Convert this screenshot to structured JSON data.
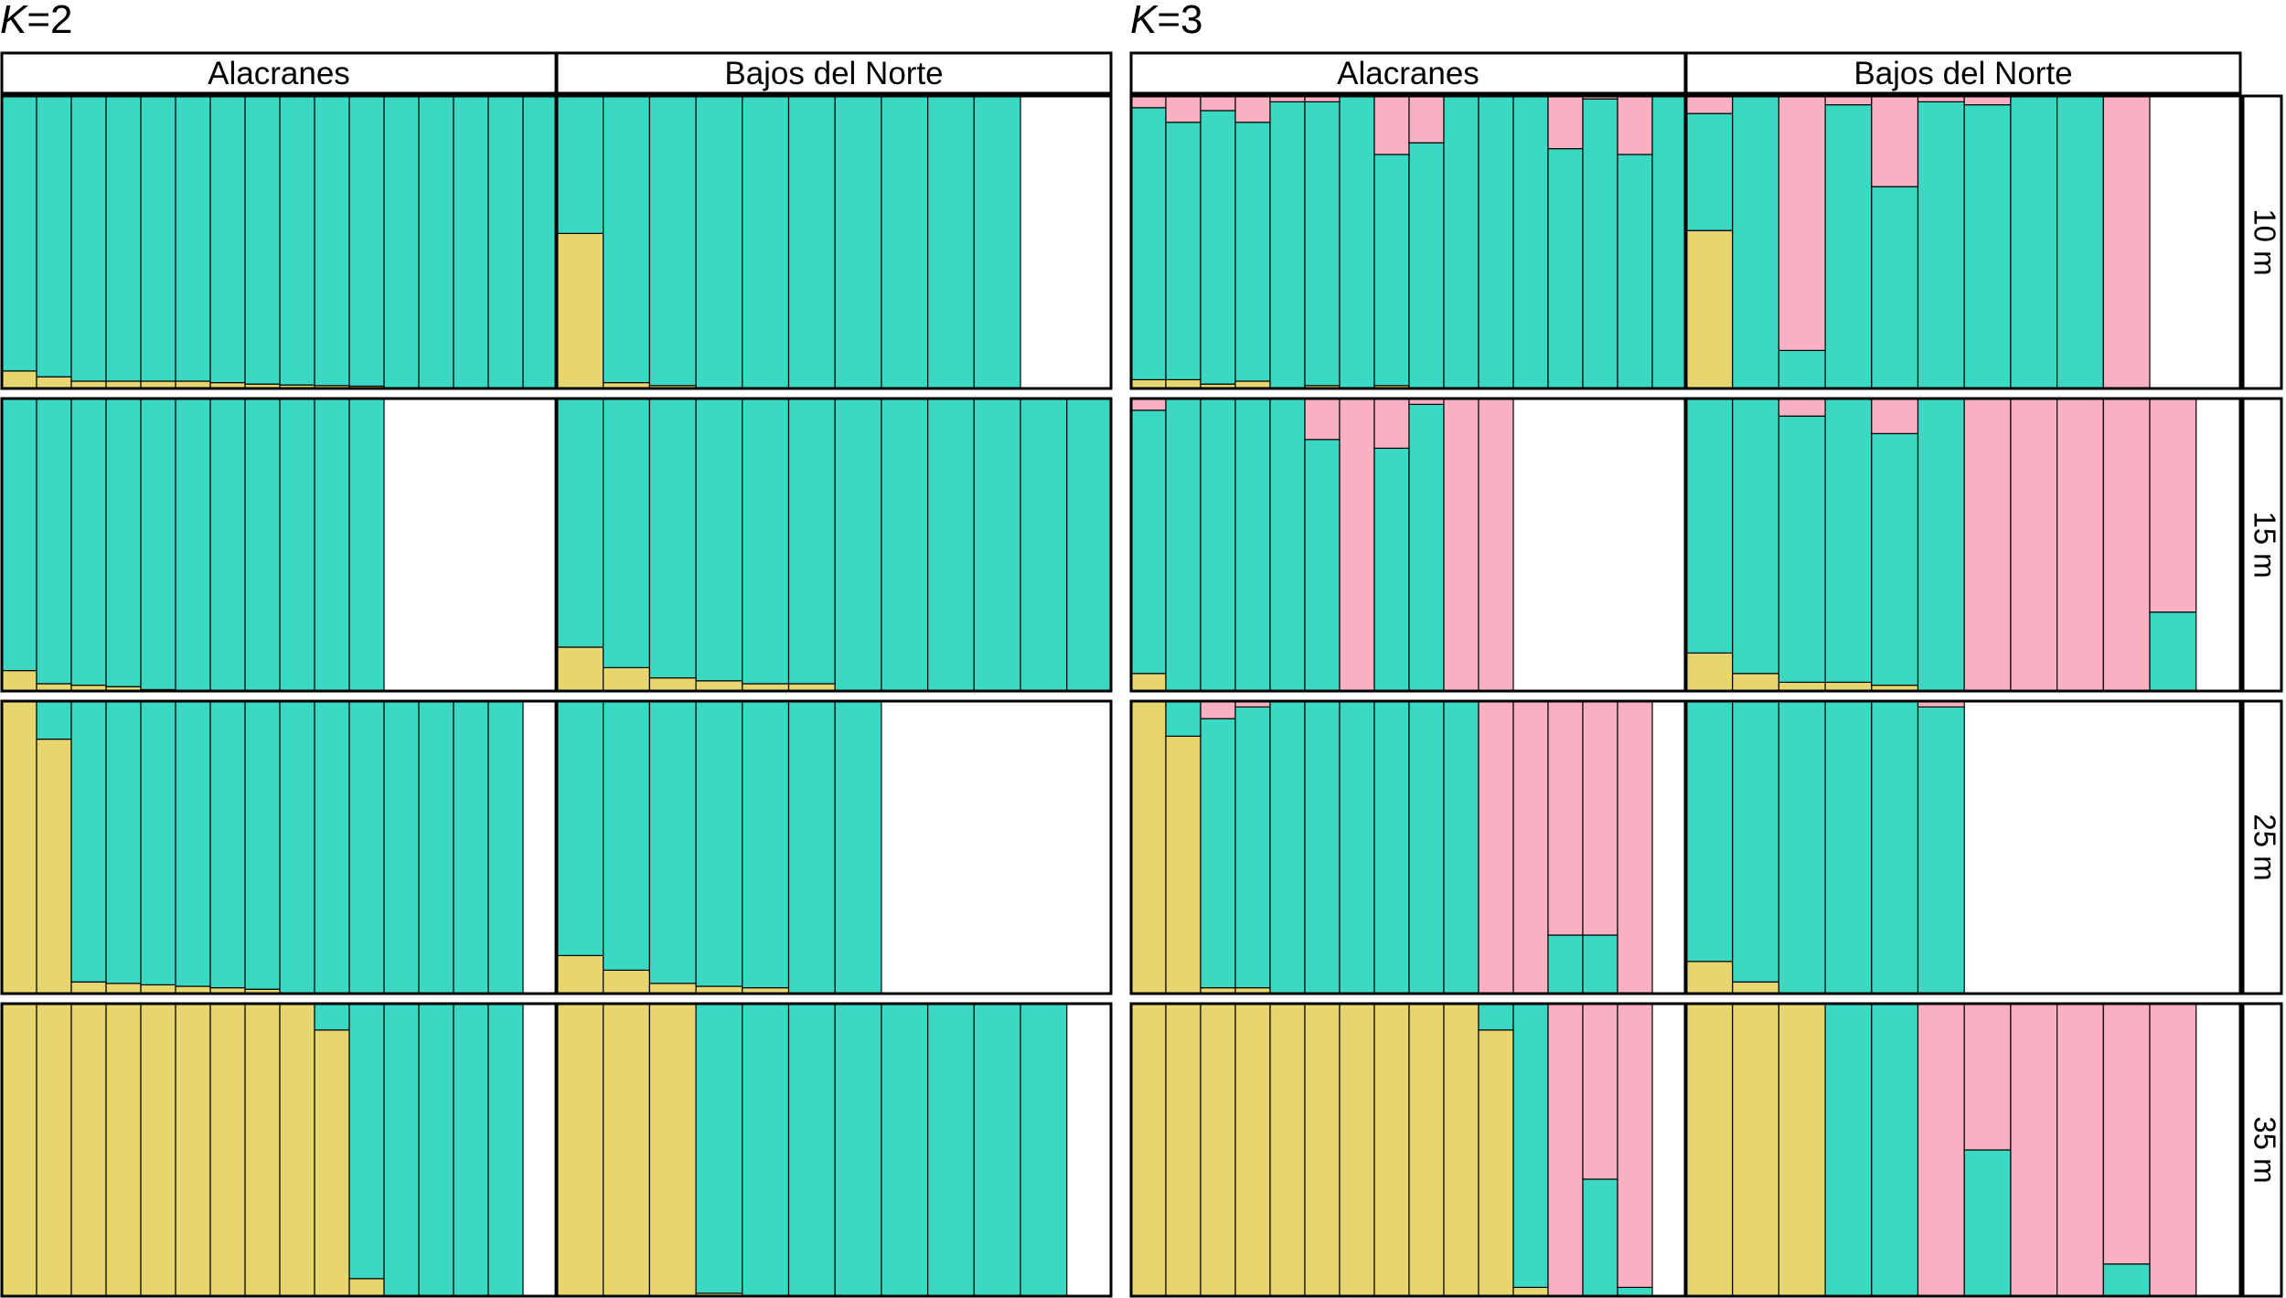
{
  "figure": {
    "panel_k2_label_italic": "K",
    "panel_k2_label_rest": "=2",
    "panel_k3_label_italic": "K",
    "panel_k3_label_rest": "=3"
  },
  "colors": {
    "cluster1": "#e7d570",
    "cluster2": "#3bd9c4",
    "cluster3": "#f8b0c2",
    "frame": "#000000"
  },
  "chart_data": [
    {
      "type": "bar",
      "subtype": "stacked-admixture",
      "title": "K=2",
      "columns": [
        "Alacranes",
        "Bajos del Norte"
      ],
      "rows": [
        "10 m",
        "15 m",
        "25 m",
        "35 m"
      ],
      "clusters": [
        "cluster1",
        "cluster2"
      ],
      "ylim": [
        0,
        1
      ],
      "cells": [
        [
          [
            [
              0.06,
              0.94
            ],
            [
              0.04,
              0.96
            ],
            [
              0.025,
              0.975
            ],
            [
              0.025,
              0.975
            ],
            [
              0.025,
              0.975
            ],
            [
              0.025,
              0.975
            ],
            [
              0.02,
              0.98
            ],
            [
              0.015,
              0.985
            ],
            [
              0.012,
              0.988
            ],
            [
              0.01,
              0.99
            ],
            [
              0.008,
              0.992
            ],
            [
              0,
              1
            ],
            [
              0,
              1
            ],
            [
              0,
              1
            ],
            [
              0,
              1
            ],
            [
              0,
              1
            ]
          ],
          [
            [
              0.53,
              0.47
            ],
            [
              0.02,
              0.98
            ],
            [
              0.01,
              0.99
            ],
            [
              0,
              1
            ],
            [
              0,
              1
            ],
            [
              0,
              1
            ],
            [
              0,
              1
            ],
            [
              0,
              1
            ],
            [
              0,
              1
            ],
            [
              0,
              1
            ]
          ]
        ],
        [
          [
            [
              0.07,
              0.93
            ],
            [
              0.025,
              0.975
            ],
            [
              0.02,
              0.98
            ],
            [
              0.015,
              0.985
            ],
            [
              0.005,
              0.995
            ],
            [
              0,
              1
            ],
            [
              0,
              1
            ],
            [
              0,
              1
            ],
            [
              0,
              1
            ],
            [
              0,
              1
            ],
            [
              0,
              1
            ]
          ],
          [
            [
              0.15,
              0.85
            ],
            [
              0.08,
              0.92
            ],
            [
              0.045,
              0.955
            ],
            [
              0.035,
              0.965
            ],
            [
              0.025,
              0.975
            ],
            [
              0.025,
              0.975
            ],
            [
              0,
              1
            ],
            [
              0,
              1
            ],
            [
              0,
              1
            ],
            [
              0,
              1
            ],
            [
              0,
              1
            ],
            [
              0,
              1
            ]
          ]
        ],
        [
          [
            [
              1,
              0
            ],
            [
              0.87,
              0.13
            ],
            [
              0.04,
              0.96
            ],
            [
              0.035,
              0.965
            ],
            [
              0.03,
              0.97
            ],
            [
              0.025,
              0.975
            ],
            [
              0.02,
              0.98
            ],
            [
              0.015,
              0.985
            ],
            [
              0,
              1
            ],
            [
              0,
              1
            ],
            [
              0,
              1
            ],
            [
              0,
              1
            ],
            [
              0,
              1
            ],
            [
              0,
              1
            ],
            [
              0,
              1
            ]
          ],
          [
            [
              0.13,
              0.87
            ],
            [
              0.08,
              0.92
            ],
            [
              0.035,
              0.965
            ],
            [
              0.025,
              0.975
            ],
            [
              0.02,
              0.98
            ],
            [
              0,
              1
            ],
            [
              0,
              1
            ]
          ]
        ],
        [
          [
            [
              1,
              0
            ],
            [
              1,
              0
            ],
            [
              1,
              0
            ],
            [
              1,
              0
            ],
            [
              1,
              0
            ],
            [
              1,
              0
            ],
            [
              1,
              0
            ],
            [
              1,
              0
            ],
            [
              1,
              0
            ],
            [
              0.91,
              0.09
            ],
            [
              0.06,
              0.94
            ],
            [
              0,
              1
            ],
            [
              0,
              1
            ],
            [
              0,
              1
            ],
            [
              0,
              1
            ]
          ],
          [
            [
              1,
              0
            ],
            [
              1,
              0
            ],
            [
              1,
              0
            ],
            [
              0.01,
              0.99
            ],
            [
              0,
              1
            ],
            [
              0,
              1
            ],
            [
              0,
              1
            ],
            [
              0,
              1
            ],
            [
              0,
              1
            ],
            [
              0,
              1
            ],
            [
              0,
              1
            ]
          ]
        ]
      ]
    },
    {
      "type": "bar",
      "subtype": "stacked-admixture",
      "title": "K=3",
      "columns": [
        "Alacranes",
        "Bajos del Norte"
      ],
      "rows": [
        "10 m",
        "15 m",
        "25 m",
        "35 m"
      ],
      "clusters": [
        "cluster1",
        "cluster2",
        "cluster3"
      ],
      "ylim": [
        0,
        1
      ],
      "cells": [
        [
          [
            [
              0.03,
              0.93,
              0.04
            ],
            [
              0.03,
              0.88,
              0.09
            ],
            [
              0.015,
              0.935,
              0.05
            ],
            [
              0.025,
              0.885,
              0.09
            ],
            [
              0,
              0.98,
              0.02
            ],
            [
              0.01,
              0.97,
              0.02
            ],
            [
              0,
              1,
              0
            ],
            [
              0.01,
              0.79,
              0.2
            ],
            [
              0,
              0.84,
              0.16
            ],
            [
              0,
              1,
              0
            ],
            [
              0,
              1,
              0
            ],
            [
              0,
              1,
              0
            ],
            [
              0,
              0.82,
              0.18
            ],
            [
              0,
              0.99,
              0.01
            ],
            [
              0,
              0.8,
              0.2
            ],
            [
              0,
              1,
              0
            ]
          ],
          [
            [
              0.54,
              0.4,
              0.06
            ],
            [
              0,
              1,
              0
            ],
            [
              0,
              0.13,
              0.87
            ],
            [
              0,
              0.97,
              0.03
            ],
            [
              0,
              0.69,
              0.31
            ],
            [
              0,
              0.98,
              0.02
            ],
            [
              0,
              0.97,
              0.03
            ],
            [
              0,
              1,
              0
            ],
            [
              0,
              1,
              0
            ],
            [
              0,
              0,
              1
            ],
            [
              0,
              0,
              0
            ]
          ]
        ],
        [
          [
            [
              0.06,
              0.9,
              0.04
            ],
            [
              0,
              1,
              0
            ],
            [
              0,
              1,
              0
            ],
            [
              0,
              1,
              0
            ],
            [
              0,
              1,
              0
            ],
            [
              0,
              0.86,
              0.14
            ],
            [
              0,
              0,
              1
            ],
            [
              0,
              0.83,
              0.17
            ],
            [
              0,
              0.98,
              0.02
            ],
            [
              0,
              0,
              1
            ],
            [
              0,
              0,
              1
            ],
            [
              0,
              0,
              0
            ],
            [
              0,
              0,
              0
            ],
            [
              0,
              0,
              0
            ],
            [
              0,
              0,
              0
            ],
            [
              0,
              0,
              0
            ]
          ],
          [
            [
              0.13,
              0.87,
              0
            ],
            [
              0.06,
              0.94,
              0
            ],
            [
              0.03,
              0.91,
              0.06
            ],
            [
              0.03,
              0.97,
              0
            ],
            [
              0.02,
              0.86,
              0.12
            ],
            [
              0,
              1,
              0
            ],
            [
              0,
              0,
              1
            ],
            [
              0,
              0,
              1
            ],
            [
              0,
              0,
              1
            ],
            [
              0,
              0,
              1
            ],
            [
              0,
              0.27,
              0.73
            ]
          ]
        ],
        [
          [
            [
              1,
              0,
              0
            ],
            [
              0.88,
              0.12,
              0
            ],
            [
              0.02,
              0.92,
              0.06
            ],
            [
              0.02,
              0.96,
              0.02
            ],
            [
              0,
              1,
              0
            ],
            [
              0,
              1,
              0
            ],
            [
              0,
              1,
              0
            ],
            [
              0,
              1,
              0
            ],
            [
              0,
              1,
              0
            ],
            [
              0,
              1,
              0
            ],
            [
              0,
              0,
              1
            ],
            [
              0,
              0,
              1
            ],
            [
              0,
              0.2,
              0.8
            ],
            [
              0,
              0.2,
              0.8
            ],
            [
              0,
              0,
              1
            ],
            [
              0,
              0,
              0
            ]
          ],
          [
            [
              0.11,
              0.89,
              0
            ],
            [
              0.04,
              0.96,
              0
            ],
            [
              0,
              1,
              0
            ],
            [
              0,
              1,
              0
            ],
            [
              0,
              1,
              0
            ],
            [
              0,
              0.98,
              0.02
            ]
          ]
        ],
        [
          [
            [
              1,
              0,
              0
            ],
            [
              1,
              0,
              0
            ],
            [
              1,
              0,
              0
            ],
            [
              1,
              0,
              0
            ],
            [
              1,
              0,
              0
            ],
            [
              1,
              0,
              0
            ],
            [
              1,
              0,
              0
            ],
            [
              1,
              0,
              0
            ],
            [
              1,
              0,
              0
            ],
            [
              1,
              0,
              0
            ],
            [
              0.91,
              0.09,
              0
            ],
            [
              0.03,
              0.97,
              0
            ],
            [
              0,
              0,
              1
            ],
            [
              0,
              0.4,
              0.6
            ],
            [
              0,
              0.03,
              0.97
            ],
            [
              0,
              0,
              0
            ]
          ],
          [
            [
              1,
              0,
              0
            ],
            [
              1,
              0,
              0
            ],
            [
              1,
              0,
              0
            ],
            [
              0,
              1,
              0
            ],
            [
              0,
              1,
              0
            ],
            [
              0,
              0,
              1
            ],
            [
              0,
              0.5,
              0.5
            ],
            [
              0,
              0,
              1
            ],
            [
              0,
              0,
              1
            ],
            [
              0,
              0.11,
              0.89
            ],
            [
              0,
              0,
              1
            ],
            [
              0,
              0,
              0
            ]
          ]
        ]
      ]
    }
  ]
}
